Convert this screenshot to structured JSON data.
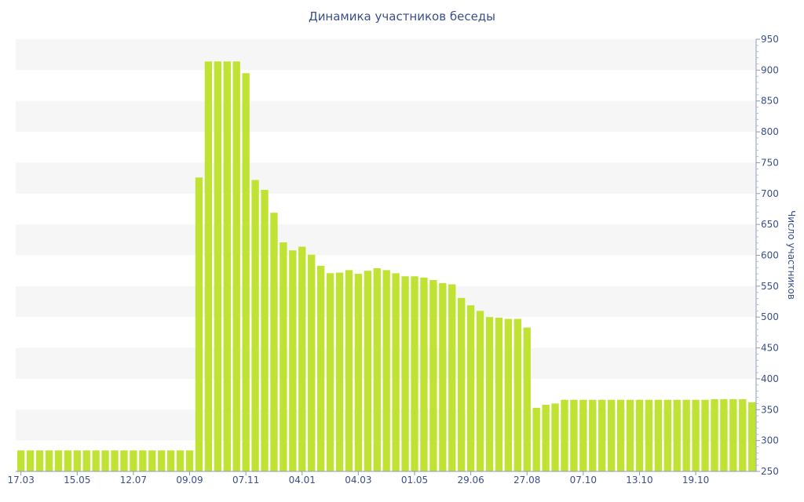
{
  "chart_data": {
    "type": "bar",
    "title": "Динамика участников беседы",
    "ylabel": "Число участников",
    "xlabel": "",
    "ylim": [
      250,
      950
    ],
    "y_ticks": [
      250,
      300,
      350,
      400,
      450,
      500,
      550,
      600,
      650,
      700,
      750,
      800,
      850,
      900,
      950
    ],
    "y_axis_side": "right",
    "grid": "alternating horizontal bands",
    "x_tick_labels": [
      "17.03",
      "15.05",
      "12.07",
      "09.09",
      "07.11",
      "04.01",
      "04.03",
      "01.05",
      "29.06",
      "27.08",
      "07.10",
      "13.10",
      "19.10"
    ],
    "bar_color": "#bfe233",
    "values": [
      284,
      284,
      284,
      284,
      284,
      284,
      284,
      284,
      284,
      284,
      284,
      284,
      284,
      284,
      284,
      284,
      284,
      284,
      284,
      726,
      914,
      914,
      914,
      914,
      895,
      722,
      706,
      669,
      621,
      608,
      614,
      601,
      583,
      571,
      572,
      576,
      570,
      575,
      579,
      576,
      571,
      566,
      566,
      564,
      560,
      555,
      553,
      531,
      519,
      510,
      500,
      499,
      497,
      497,
      483,
      353,
      358,
      360,
      366,
      366,
      366,
      366,
      366,
      366,
      366,
      366,
      366,
      366,
      366,
      366,
      366,
      366,
      366,
      366,
      367,
      367,
      367,
      367,
      362
    ]
  }
}
